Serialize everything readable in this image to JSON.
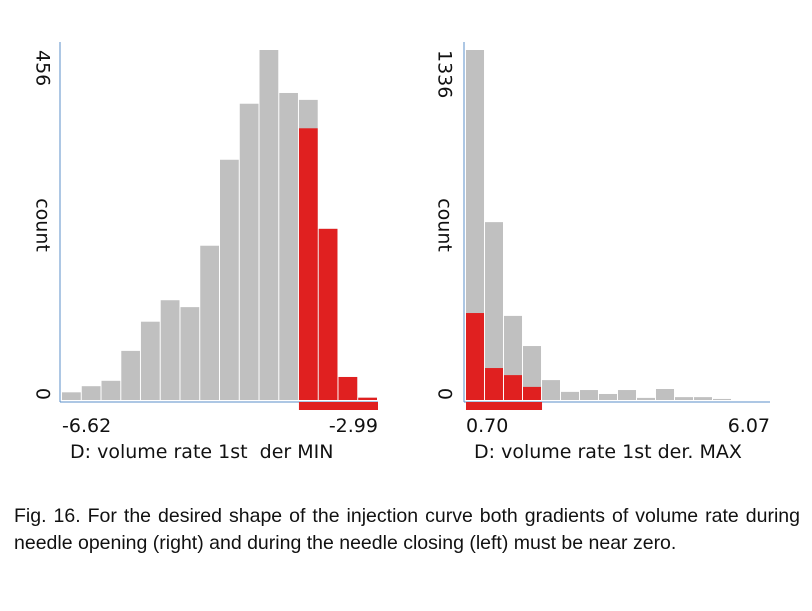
{
  "chart_data": [
    {
      "type": "histogram",
      "xlabel": "D: volume rate 1st  der MIN",
      "ylabel": "count",
      "bins": [
        -6.62,
        -6.393,
        -6.166,
        -5.939,
        -5.713,
        -5.486,
        -5.259,
        -5.032,
        -4.805,
        -4.578,
        -4.351,
        -4.124,
        -3.898,
        -3.671,
        -3.444,
        -3.217,
        -2.99
      ],
      "series": [
        {
          "color": "#c0c0c0",
          "values": [
            10,
            18,
            25,
            64,
            102,
            130,
            121,
            201,
            313,
            386,
            456,
            400,
            391,
            223,
            30,
            3
          ]
        },
        {
          "color": "#e02020",
          "values": [
            0,
            0,
            0,
            0,
            0,
            0,
            0,
            0,
            0,
            0,
            0,
            0,
            354,
            223,
            30,
            3
          ]
        }
      ],
      "xlim": [
        -6.62,
        -2.99
      ],
      "xticks": [
        -6.62,
        -2.99
      ],
      "ylim": [
        0,
        456
      ],
      "yticks": [
        0,
        456
      ]
    },
    {
      "type": "histogram",
      "xlabel": "D: volume rate 1st der. MAX",
      "ylabel": "count",
      "bins": [
        0.7,
        1.036,
        1.371,
        1.707,
        2.043,
        2.378,
        2.714,
        3.049,
        3.385,
        3.721,
        4.056,
        4.392,
        4.728,
        5.063,
        5.399,
        5.734,
        6.07
      ],
      "series": [
        {
          "color": "#c0c0c0",
          "values": [
            1336,
            679,
            321,
            206,
            76,
            31,
            38,
            23,
            38,
            8,
            42,
            11,
            11,
            4,
            0,
            0
          ]
        },
        {
          "color": "#e02020",
          "values": [
            332,
            122,
            95,
            50,
            0,
            0,
            0,
            0,
            0,
            0,
            0,
            0,
            0,
            0,
            0,
            0
          ]
        }
      ],
      "xlim": [
        0.7,
        6.07
      ],
      "xticks": [
        {
          "value": 0.7,
          "label": "0.70"
        },
        6.07
      ],
      "ylim": [
        0,
        1336
      ],
      "yticks": [
        0,
        1336
      ]
    }
  ],
  "caption": "Fig. 16.  For the desired shape of the injection curve both gradients of volume rate during needle opening (right) and during the needle closing (left) must be near zero."
}
